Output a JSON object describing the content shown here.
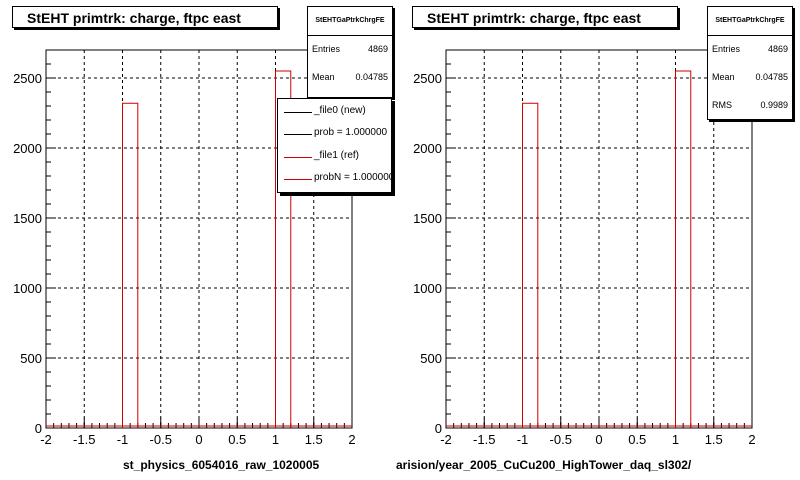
{
  "colors": {
    "ref": "#cc0000",
    "new": "#000000",
    "axis": "#000000",
    "grid": "#000000"
  },
  "chart_data": [
    {
      "type": "bar",
      "title": "StEHT primtrk: charge, ftpc east",
      "x_range": [
        -2,
        2
      ],
      "ylim": [
        0,
        2700
      ],
      "x_ticks": [
        "-2",
        "-1.5",
        "-1",
        "-0.5",
        "0",
        "0.5",
        "1",
        "1.5",
        "2"
      ],
      "y_ticks": [
        "0",
        "500",
        "1000",
        "1500",
        "2000",
        "2500"
      ],
      "grid": true,
      "xlabel": "st_physics_6054016_raw_1020005",
      "bins": [
        {
          "x0": -1.0,
          "x1": -0.8,
          "value": 2320
        },
        {
          "x0": 1.0,
          "x1": 1.2,
          "value": 2550
        }
      ],
      "stats": {
        "name": "StEHTGaPtrkChrgFE",
        "entries_label": "Entries",
        "entries": "4869",
        "mean_label": "Mean",
        "mean": "0.04785"
      },
      "legend": [
        {
          "label": "_file0 (new)",
          "color": "#000000"
        },
        {
          "label": "prob = 1.000000",
          "color": "#000000"
        },
        {
          "label": "_file1 (ref)",
          "color": "#cc0000"
        },
        {
          "label": "probN = 1.000000",
          "color": "#cc0000"
        }
      ]
    },
    {
      "type": "bar",
      "title": "StEHT primtrk: charge, ftpc east",
      "x_range": [
        -2,
        2
      ],
      "ylim": [
        0,
        2700
      ],
      "x_ticks": [
        "-2",
        "-1.5",
        "-1",
        "-0.5",
        "0",
        "0.5",
        "1",
        "1.5",
        "2"
      ],
      "y_ticks": [
        "0",
        "500",
        "1000",
        "1500",
        "2000",
        "2500"
      ],
      "grid": true,
      "xlabel": "arision/year_2005_CuCu200_HighTower_daq_sl302/",
      "bins": [
        {
          "x0": -1.0,
          "x1": -0.8,
          "value": 2320
        },
        {
          "x0": 1.0,
          "x1": 1.2,
          "value": 2550
        }
      ],
      "stats": {
        "name": "StEHTGaPtrkChrgFE",
        "entries_label": "Entries",
        "entries": "4869",
        "mean_label": "Mean",
        "mean": "0.04785",
        "rms_label": "RMS",
        "rms": "0.9989"
      }
    }
  ]
}
